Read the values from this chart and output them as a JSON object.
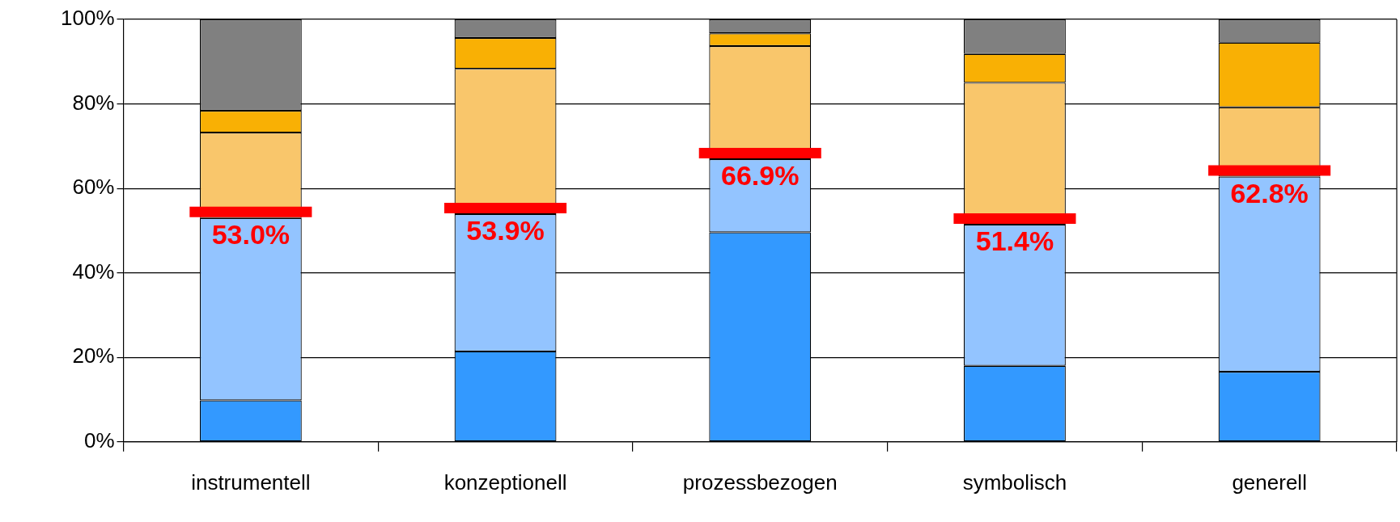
{
  "chart_data": {
    "type": "bar",
    "stacked": true,
    "categories": [
      "instrumentell",
      "konzeptionell",
      "prozessbezogen",
      "symbolisch",
      "generell"
    ],
    "series": [
      {
        "color": "#3399ff",
        "values": [
          9.8,
          21.4,
          49.6,
          18.0,
          16.6
        ]
      },
      {
        "color": "#93c4ff",
        "values": [
          43.2,
          32.5,
          17.3,
          33.4,
          46.2
        ]
      },
      {
        "color": "#f9c66b",
        "values": [
          20.2,
          34.4,
          26.8,
          33.6,
          16.4
        ]
      },
      {
        "color": "#f9b004",
        "values": [
          5.2,
          7.3,
          3.0,
          6.8,
          15.3
        ]
      },
      {
        "color": "#808080",
        "values": [
          21.6,
          4.4,
          3.3,
          8.2,
          5.5
        ]
      }
    ],
    "annotations": [
      {
        "text": "53.0%",
        "x": "instrumentell",
        "y": 53.0
      },
      {
        "text": "53.9%",
        "x": "konzeptionell",
        "y": 53.9
      },
      {
        "text": "66.9%",
        "x": "prozessbezogen",
        "y": 66.9
      },
      {
        "text": "51.4%",
        "x": "symbolisch",
        "y": 51.4
      },
      {
        "text": "62.8%",
        "x": "generell",
        "y": 62.8
      }
    ],
    "ylim": [
      0,
      100
    ],
    "yticks": [
      {
        "value": 0,
        "label": "0%"
      },
      {
        "value": 20,
        "label": "20%"
      },
      {
        "value": 40,
        "label": "40%"
      },
      {
        "value": 60,
        "label": "60%"
      },
      {
        "value": 80,
        "label": "80%"
      },
      {
        "value": 100,
        "label": "100%"
      }
    ],
    "grid": "y",
    "legend": false
  }
}
